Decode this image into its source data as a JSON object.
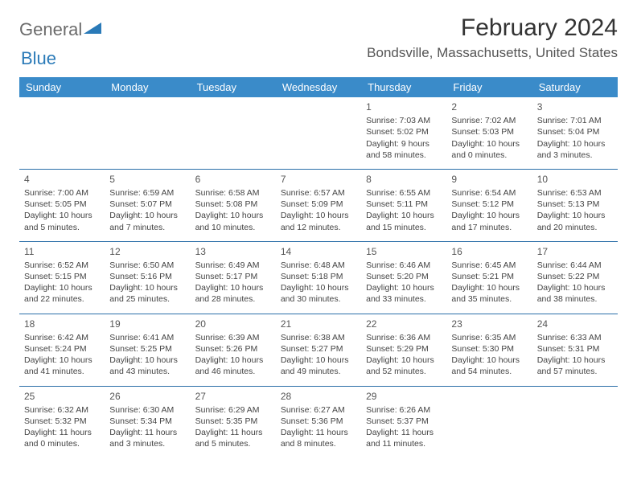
{
  "logo": {
    "textA": "General",
    "textB": "Blue"
  },
  "title": "February 2024",
  "location": "Bondsville, Massachusetts, United States",
  "colors": {
    "header_bg": "#3a8bc9",
    "header_fg": "#ffffff",
    "row_border": "#2a6ea8",
    "text": "#444444",
    "title_color": "#333333"
  },
  "dayHeaders": [
    "Sunday",
    "Monday",
    "Tuesday",
    "Wednesday",
    "Thursday",
    "Friday",
    "Saturday"
  ],
  "weeks": [
    [
      null,
      null,
      null,
      null,
      {
        "n": "1",
        "sr": "Sunrise: 7:03 AM",
        "ss": "Sunset: 5:02 PM",
        "d1": "Daylight: 9 hours",
        "d2": "and 58 minutes."
      },
      {
        "n": "2",
        "sr": "Sunrise: 7:02 AM",
        "ss": "Sunset: 5:03 PM",
        "d1": "Daylight: 10 hours",
        "d2": "and 0 minutes."
      },
      {
        "n": "3",
        "sr": "Sunrise: 7:01 AM",
        "ss": "Sunset: 5:04 PM",
        "d1": "Daylight: 10 hours",
        "d2": "and 3 minutes."
      }
    ],
    [
      {
        "n": "4",
        "sr": "Sunrise: 7:00 AM",
        "ss": "Sunset: 5:05 PM",
        "d1": "Daylight: 10 hours",
        "d2": "and 5 minutes."
      },
      {
        "n": "5",
        "sr": "Sunrise: 6:59 AM",
        "ss": "Sunset: 5:07 PM",
        "d1": "Daylight: 10 hours",
        "d2": "and 7 minutes."
      },
      {
        "n": "6",
        "sr": "Sunrise: 6:58 AM",
        "ss": "Sunset: 5:08 PM",
        "d1": "Daylight: 10 hours",
        "d2": "and 10 minutes."
      },
      {
        "n": "7",
        "sr": "Sunrise: 6:57 AM",
        "ss": "Sunset: 5:09 PM",
        "d1": "Daylight: 10 hours",
        "d2": "and 12 minutes."
      },
      {
        "n": "8",
        "sr": "Sunrise: 6:55 AM",
        "ss": "Sunset: 5:11 PM",
        "d1": "Daylight: 10 hours",
        "d2": "and 15 minutes."
      },
      {
        "n": "9",
        "sr": "Sunrise: 6:54 AM",
        "ss": "Sunset: 5:12 PM",
        "d1": "Daylight: 10 hours",
        "d2": "and 17 minutes."
      },
      {
        "n": "10",
        "sr": "Sunrise: 6:53 AM",
        "ss": "Sunset: 5:13 PM",
        "d1": "Daylight: 10 hours",
        "d2": "and 20 minutes."
      }
    ],
    [
      {
        "n": "11",
        "sr": "Sunrise: 6:52 AM",
        "ss": "Sunset: 5:15 PM",
        "d1": "Daylight: 10 hours",
        "d2": "and 22 minutes."
      },
      {
        "n": "12",
        "sr": "Sunrise: 6:50 AM",
        "ss": "Sunset: 5:16 PM",
        "d1": "Daylight: 10 hours",
        "d2": "and 25 minutes."
      },
      {
        "n": "13",
        "sr": "Sunrise: 6:49 AM",
        "ss": "Sunset: 5:17 PM",
        "d1": "Daylight: 10 hours",
        "d2": "and 28 minutes."
      },
      {
        "n": "14",
        "sr": "Sunrise: 6:48 AM",
        "ss": "Sunset: 5:18 PM",
        "d1": "Daylight: 10 hours",
        "d2": "and 30 minutes."
      },
      {
        "n": "15",
        "sr": "Sunrise: 6:46 AM",
        "ss": "Sunset: 5:20 PM",
        "d1": "Daylight: 10 hours",
        "d2": "and 33 minutes."
      },
      {
        "n": "16",
        "sr": "Sunrise: 6:45 AM",
        "ss": "Sunset: 5:21 PM",
        "d1": "Daylight: 10 hours",
        "d2": "and 35 minutes."
      },
      {
        "n": "17",
        "sr": "Sunrise: 6:44 AM",
        "ss": "Sunset: 5:22 PM",
        "d1": "Daylight: 10 hours",
        "d2": "and 38 minutes."
      }
    ],
    [
      {
        "n": "18",
        "sr": "Sunrise: 6:42 AM",
        "ss": "Sunset: 5:24 PM",
        "d1": "Daylight: 10 hours",
        "d2": "and 41 minutes."
      },
      {
        "n": "19",
        "sr": "Sunrise: 6:41 AM",
        "ss": "Sunset: 5:25 PM",
        "d1": "Daylight: 10 hours",
        "d2": "and 43 minutes."
      },
      {
        "n": "20",
        "sr": "Sunrise: 6:39 AM",
        "ss": "Sunset: 5:26 PM",
        "d1": "Daylight: 10 hours",
        "d2": "and 46 minutes."
      },
      {
        "n": "21",
        "sr": "Sunrise: 6:38 AM",
        "ss": "Sunset: 5:27 PM",
        "d1": "Daylight: 10 hours",
        "d2": "and 49 minutes."
      },
      {
        "n": "22",
        "sr": "Sunrise: 6:36 AM",
        "ss": "Sunset: 5:29 PM",
        "d1": "Daylight: 10 hours",
        "d2": "and 52 minutes."
      },
      {
        "n": "23",
        "sr": "Sunrise: 6:35 AM",
        "ss": "Sunset: 5:30 PM",
        "d1": "Daylight: 10 hours",
        "d2": "and 54 minutes."
      },
      {
        "n": "24",
        "sr": "Sunrise: 6:33 AM",
        "ss": "Sunset: 5:31 PM",
        "d1": "Daylight: 10 hours",
        "d2": "and 57 minutes."
      }
    ],
    [
      {
        "n": "25",
        "sr": "Sunrise: 6:32 AM",
        "ss": "Sunset: 5:32 PM",
        "d1": "Daylight: 11 hours",
        "d2": "and 0 minutes."
      },
      {
        "n": "26",
        "sr": "Sunrise: 6:30 AM",
        "ss": "Sunset: 5:34 PM",
        "d1": "Daylight: 11 hours",
        "d2": "and 3 minutes."
      },
      {
        "n": "27",
        "sr": "Sunrise: 6:29 AM",
        "ss": "Sunset: 5:35 PM",
        "d1": "Daylight: 11 hours",
        "d2": "and 5 minutes."
      },
      {
        "n": "28",
        "sr": "Sunrise: 6:27 AM",
        "ss": "Sunset: 5:36 PM",
        "d1": "Daylight: 11 hours",
        "d2": "and 8 minutes."
      },
      {
        "n": "29",
        "sr": "Sunrise: 6:26 AM",
        "ss": "Sunset: 5:37 PM",
        "d1": "Daylight: 11 hours",
        "d2": "and 11 minutes."
      },
      null,
      null
    ]
  ]
}
